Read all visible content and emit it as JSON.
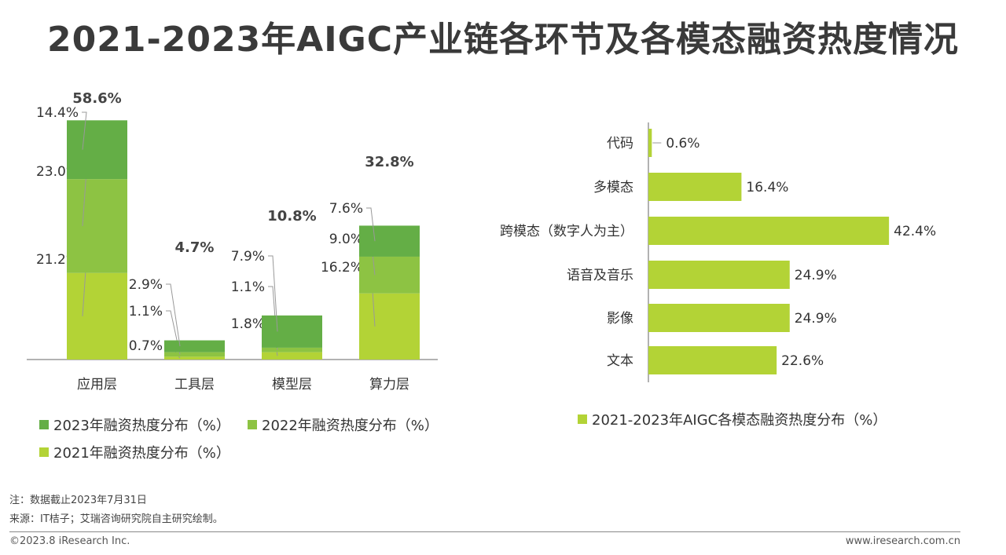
{
  "title": "2021-2023年AIGC产业链各环节及各模态融资热度情况",
  "colors": {
    "y2023": "#64ae46",
    "y2022": "#8dc343",
    "y2021": "#b3d336",
    "leader": "#999999",
    "axis": "#666666"
  },
  "chart_data": [
    {
      "type": "bar",
      "stacked": true,
      "categories": [
        "应用层",
        "工具层",
        "模型层",
        "算力层"
      ],
      "totals_labels": [
        "58.6%",
        "4.7%",
        "10.8%",
        "32.8%"
      ],
      "totals": [
        58.6,
        4.7,
        10.8,
        32.8
      ],
      "series": [
        {
          "name": "2021年融资热度分布（%）",
          "values": [
            21.2,
            0.7,
            1.8,
            16.2
          ],
          "labels": [
            "21.2%",
            "0.7%",
            "1.8%",
            "16.2%"
          ]
        },
        {
          "name": "2022年融资热度分布（%）",
          "values": [
            23.0,
            1.1,
            1.1,
            9.0
          ],
          "labels": [
            "23.0%",
            "1.1%",
            "1.1%",
            "9.0%"
          ]
        },
        {
          "name": "2023年融资热度分布（%）",
          "values": [
            14.4,
            2.9,
            7.9,
            7.6
          ],
          "labels": [
            "14.4%",
            "2.9%",
            "7.9%",
            "7.6%"
          ]
        }
      ],
      "ylim": [
        0,
        60
      ]
    },
    {
      "type": "bar",
      "orientation": "horizontal",
      "categories": [
        "代码",
        "多模态",
        "跨模态（数字人为主）",
        "语音及音乐",
        "影像",
        "文本"
      ],
      "values": [
        0.6,
        16.4,
        42.4,
        24.9,
        24.9,
        22.6
      ],
      "labels": [
        "0.6%",
        "16.4%",
        "42.4%",
        "24.9%",
        "24.9%",
        "22.6%"
      ],
      "series_name": "2021-2023年AIGC各模态融资热度分布（%）",
      "xlim": [
        0,
        45
      ]
    }
  ],
  "legend": {
    "y2023": "2023年融资热度分布（%）",
    "y2022": "2022年融资热度分布（%）",
    "y2021": "2021年融资热度分布（%）",
    "modality": "2021-2023年AIGC各模态融资热度分布（%）"
  },
  "notes": {
    "note": "注：数据截止2023年7月31日",
    "source": "来源：IT桔子；艾瑞咨询研究院自主研究绘制。"
  },
  "footer": {
    "copyright": "©2023.8 iResearch Inc.",
    "website": "www.iresearch.com.cn"
  }
}
